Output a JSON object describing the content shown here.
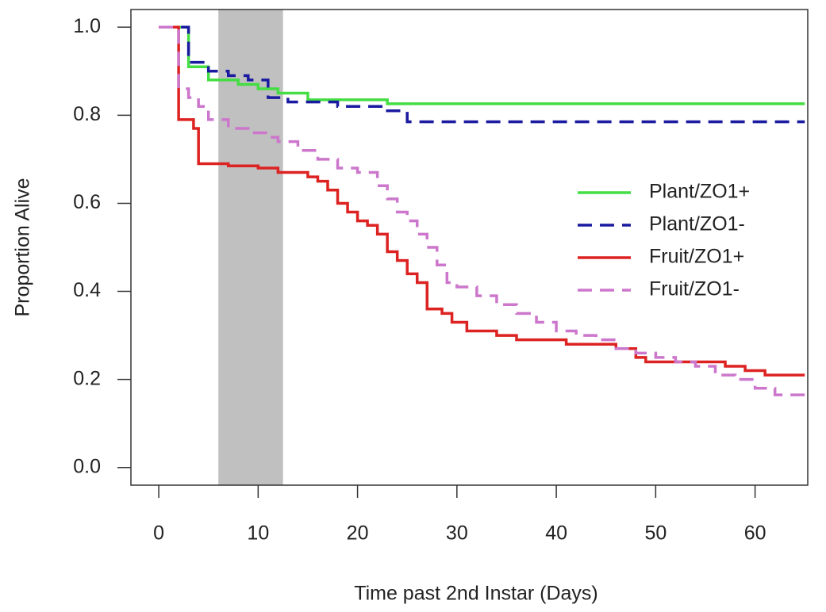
{
  "chart_data": {
    "type": "step",
    "xlabel": "Time past 2nd Instar (Days)",
    "ylabel": "Proportion Alive",
    "xlim": [
      -2.8,
      65.3
    ],
    "ylim": [
      -0.04,
      1.04
    ],
    "xticks": [
      0,
      10,
      20,
      30,
      40,
      50,
      60
    ],
    "yticks": [
      {
        "value": 0,
        "label": "0.0"
      },
      {
        "value": 0.2,
        "label": "0.2"
      },
      {
        "value": 0.4,
        "label": "0.4"
      },
      {
        "value": 0.6,
        "label": "0.6"
      },
      {
        "value": 0.8,
        "label": "0.8"
      },
      {
        "value": 1,
        "label": "1.0"
      }
    ],
    "shaded_region": [
      6,
      12.5
    ],
    "shaded_color": "#c0c0c0",
    "legend": "right",
    "series": [
      {
        "name": "Plant/ZO1+",
        "color": "#44dd44",
        "dashed": false,
        "x": [
          0,
          3,
          5,
          8,
          10,
          12,
          15,
          23,
          65
        ],
        "values": [
          1,
          0.91,
          0.88,
          0.87,
          0.86,
          0.85,
          0.835,
          0.826,
          0.826
        ]
      },
      {
        "name": "Plant/ZO1-",
        "color": "#1a1aa0",
        "dashed": true,
        "x": [
          0,
          3,
          5,
          7,
          9,
          11,
          13,
          18,
          23,
          25,
          65
        ],
        "values": [
          1,
          0.92,
          0.9,
          0.89,
          0.88,
          0.84,
          0.83,
          0.82,
          0.81,
          0.785,
          0.785
        ]
      },
      {
        "name": "Fruit/ZO1+",
        "color": "#dd2222",
        "dashed": false,
        "x": [
          0,
          2,
          3.5,
          4,
          7,
          10,
          12,
          15,
          16,
          17,
          18,
          19,
          20,
          21,
          22,
          23,
          24,
          25,
          26,
          27,
          28.5,
          29.5,
          31,
          34,
          36,
          41,
          46,
          48,
          49,
          57,
          59,
          61,
          65
        ],
        "values": [
          1,
          0.79,
          0.77,
          0.69,
          0.685,
          0.68,
          0.67,
          0.66,
          0.65,
          0.63,
          0.6,
          0.58,
          0.56,
          0.55,
          0.53,
          0.49,
          0.47,
          0.44,
          0.42,
          0.36,
          0.35,
          0.33,
          0.31,
          0.3,
          0.29,
          0.28,
          0.27,
          0.25,
          0.24,
          0.23,
          0.22,
          0.21,
          0.21
        ]
      },
      {
        "name": "Fruit/ZO1-",
        "color": "#cc77cc",
        "dashed": true,
        "x": [
          0,
          2,
          3,
          4,
          5,
          7,
          9,
          11,
          12,
          14,
          16,
          18,
          20,
          22,
          23,
          24,
          25,
          26,
          27,
          28,
          29,
          30,
          32,
          34,
          36,
          38,
          40,
          42,
          44,
          46,
          48,
          50,
          52,
          54,
          56,
          58,
          60,
          62,
          65
        ],
        "values": [
          1,
          0.86,
          0.84,
          0.82,
          0.79,
          0.77,
          0.76,
          0.75,
          0.74,
          0.72,
          0.7,
          0.68,
          0.67,
          0.64,
          0.61,
          0.58,
          0.56,
          0.53,
          0.5,
          0.46,
          0.42,
          0.41,
          0.39,
          0.37,
          0.35,
          0.33,
          0.31,
          0.3,
          0.29,
          0.27,
          0.26,
          0.25,
          0.24,
          0.23,
          0.21,
          0.2,
          0.18,
          0.165,
          0.165
        ]
      }
    ]
  }
}
